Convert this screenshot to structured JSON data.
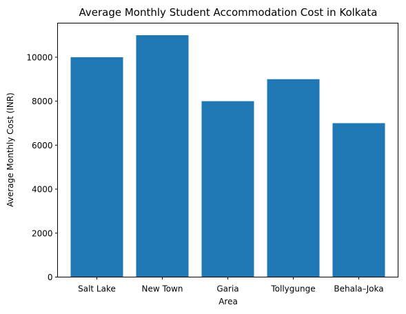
{
  "chart_data": {
    "type": "bar",
    "title": "Average Monthly Student Accommodation Cost in Kolkata",
    "xlabel": "Area",
    "ylabel": "Average Monthly Cost (INR)",
    "categories": [
      "Salt Lake",
      "New Town",
      "Garia",
      "Tollygunge",
      "Behala–Joka"
    ],
    "values": [
      10000,
      11000,
      8000,
      9000,
      7000
    ],
    "ylim": [
      0,
      11550
    ],
    "yticks": [
      0,
      2000,
      4000,
      6000,
      8000,
      10000
    ],
    "ytick_labels": [
      "0",
      "2000",
      "4000",
      "6000",
      "8000",
      "10000"
    ],
    "bar_color": "#1f77b4",
    "grid": false,
    "legend": "none"
  }
}
